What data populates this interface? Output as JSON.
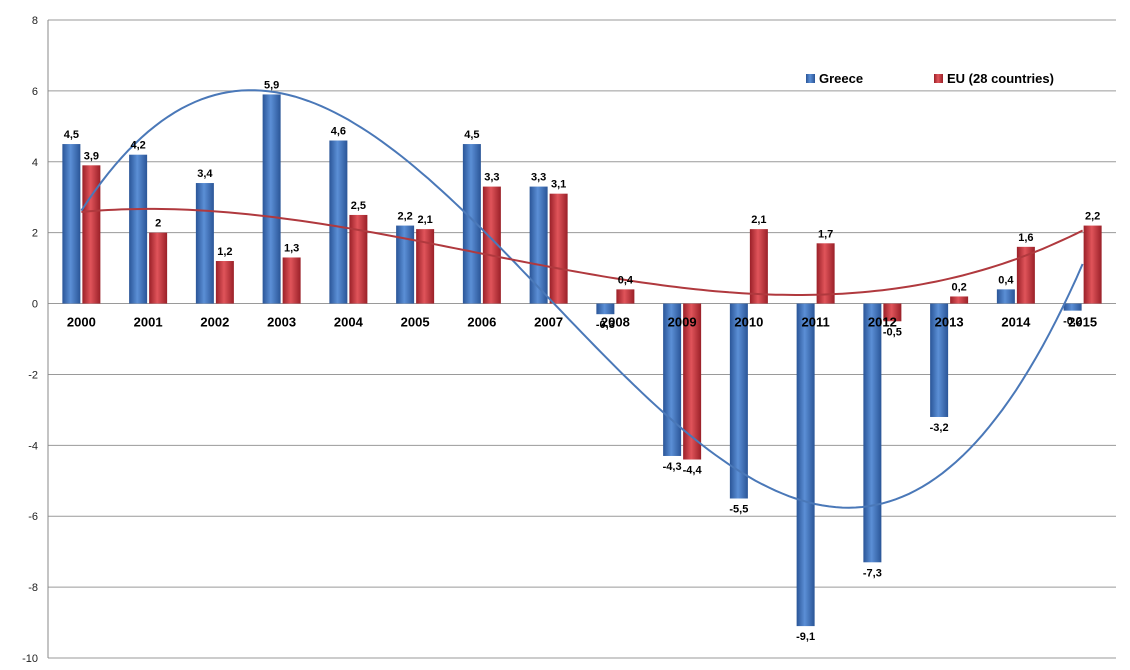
{
  "chart_data": {
    "type": "bar",
    "categories": [
      "2000",
      "2001",
      "2002",
      "2003",
      "2004",
      "2005",
      "2006",
      "2007",
      "2008",
      "2009",
      "2010",
      "2011",
      "2012",
      "2013",
      "2014",
      "2015"
    ],
    "series": [
      {
        "name": "Greece",
        "color": "#3a6fb8",
        "values": [
          4.5,
          4.2,
          3.4,
          5.9,
          4.6,
          2.2,
          4.5,
          3.3,
          -0.3,
          -4.3,
          -5.5,
          -9.1,
          -7.3,
          -3.2,
          0.4,
          -0.2
        ],
        "labels": [
          "4,5",
          "4,2",
          "3,4",
          "5,9",
          "4,6",
          "2,2",
          "4,5",
          "3,3",
          "-0,3",
          "-4,3",
          "-5,5",
          "-9,1",
          "-7,3",
          "-3,2",
          "0,4",
          "-0,2"
        ]
      },
      {
        "name": "EU (28 countries)",
        "color": "#c0343a",
        "values": [
          3.9,
          2.0,
          1.2,
          1.3,
          2.5,
          2.1,
          3.3,
          3.1,
          0.4,
          -4.4,
          2.1,
          1.7,
          -0.5,
          0.2,
          1.6,
          2.2
        ],
        "labels": [
          "3,9",
          "2",
          "1,2",
          "1,3",
          "2,5",
          "2,1",
          "3,3",
          "3,1",
          "0,4",
          "-4,4",
          "2,1",
          "1,7",
          "-0,5",
          "0,2",
          "1,6",
          "2,2"
        ]
      }
    ],
    "trendlines": [
      {
        "series": "Greece",
        "color": "#4a78b8",
        "type": "polynomial"
      },
      {
        "series": "EU (28 countries)",
        "color": "#b0393e",
        "type": "polynomial"
      }
    ],
    "ylim": [
      -10,
      8
    ],
    "yticks": [
      "8",
      "6",
      "4",
      "2",
      "0",
      "-2",
      "-4",
      "-6",
      "-8",
      "-10"
    ],
    "grid": true,
    "legend_position": "top-right"
  }
}
